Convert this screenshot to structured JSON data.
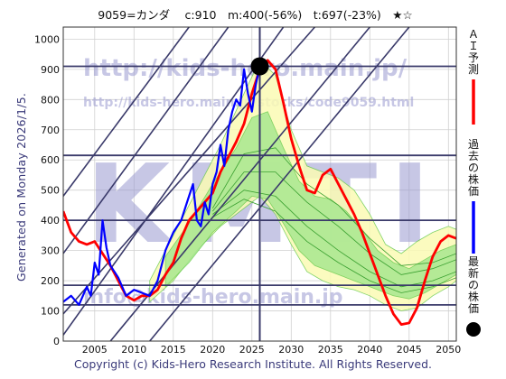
{
  "header": {
    "title": "9059=カンダ　 c:910　m:400(-56%)　t:697(-23%)　★☆"
  },
  "side_label": "Generated on Monday 2026/1/5.",
  "footer": {
    "copyright": "Copyright (c) Kids-Hero Research Institute. All Rights Reserved."
  },
  "watermarks": {
    "main": "KMTI",
    "url1": "http://kids-hero.main.jp/",
    "url2": "http://kids-hero.main.jp/stocks/code9059.html",
    "url3": "info@kids-hero.main.jp"
  },
  "chart_data": {
    "type": "line",
    "xlim": [
      2001,
      2051
    ],
    "ylim": [
      0,
      1040
    ],
    "x_ticks": [
      2005,
      2010,
      2015,
      2020,
      2025,
      2030,
      2035,
      2040,
      2045,
      2050
    ],
    "y_ticks": [
      0,
      100,
      200,
      300,
      400,
      500,
      600,
      700,
      800,
      900,
      1000
    ],
    "grid": true,
    "current_marker": {
      "x": 2026.0,
      "y": 910
    },
    "current_vline_x": 2026.0,
    "horizontal_levels": [
      910,
      615,
      400,
      185,
      120
    ],
    "diagonal_lines": [
      {
        "x1": 2001,
        "y1": 20,
        "x2": 2029,
        "y2": 1040
      },
      {
        "x1": 2001,
        "y1": 90,
        "x2": 2033,
        "y2": 1040
      },
      {
        "x1": 2001,
        "y1": 290,
        "x2": 2022,
        "y2": 1040
      },
      {
        "x1": 2001,
        "y1": 480,
        "x2": 2017,
        "y2": 1040
      },
      {
        "x1": 2007,
        "y1": 0,
        "x2": 2040,
        "y2": 1040
      },
      {
        "x1": 2012,
        "y1": 0,
        "x2": 2045,
        "y2": 1040
      }
    ],
    "legend": [
      {
        "label": "ＡＩ予測",
        "color": "#ff0000"
      },
      {
        "label": "過去の株価",
        "color": "#0000ff"
      },
      {
        "label": "最新の株価",
        "color": "#000000"
      }
    ],
    "bands": [
      {
        "name": "outer-band",
        "x": [
          2012,
          2015,
          2018,
          2021,
          2024,
          2026,
          2028,
          2030,
          2032,
          2034,
          2036,
          2038,
          2040,
          2042,
          2044,
          2046,
          2048,
          2050,
          2051
        ],
        "upper": [
          200,
          350,
          500,
          650,
          820,
          930,
          880,
          700,
          580,
          560,
          540,
          500,
          420,
          320,
          290,
          330,
          360,
          380,
          370
        ],
        "lower": [
          130,
          200,
          300,
          380,
          440,
          480,
          420,
          320,
          230,
          200,
          180,
          170,
          150,
          120,
          100,
          110,
          150,
          180,
          200
        ]
      },
      {
        "name": "inner-band",
        "x": [
          2014,
          2017,
          2020,
          2023,
          2025,
          2027,
          2029,
          2031,
          2033,
          2035,
          2037,
          2039,
          2041,
          2043,
          2045,
          2047,
          2049,
          2051
        ],
        "upper": [
          280,
          390,
          520,
          640,
          740,
          760,
          640,
          530,
          480,
          470,
          430,
          370,
          300,
          260,
          240,
          270,
          300,
          320
        ],
        "lower": [
          180,
          260,
          360,
          430,
          480,
          470,
          390,
          300,
          250,
          230,
          210,
          190,
          170,
          150,
          140,
          160,
          190,
          220
        ]
      }
    ],
    "series": [
      {
        "name": "ＡＩ予測",
        "color": "#ff0000",
        "x": [
          2001,
          2002,
          2003,
          2004,
          2005,
          2006,
          2007,
          2008,
          2009,
          2010,
          2011,
          2012,
          2013,
          2014,
          2015,
          2016,
          2017,
          2018,
          2019,
          2020,
          2021,
          2022,
          2023,
          2024,
          2025,
          2026,
          2027,
          2028,
          2029,
          2030,
          2031,
          2032,
          2033,
          2034,
          2035,
          2036,
          2037,
          2038,
          2039,
          2040,
          2041,
          2042,
          2043,
          2044,
          2045,
          2046,
          2047,
          2048,
          2049,
          2050,
          2051
        ],
        "y": [
          430,
          360,
          330,
          320,
          330,
          290,
          250,
          200,
          150,
          135,
          150,
          150,
          170,
          220,
          260,
          340,
          400,
          430,
          460,
          490,
          560,
          610,
          660,
          720,
          820,
          900,
          930,
          900,
          790,
          670,
          580,
          500,
          490,
          550,
          570,
          520,
          470,
          420,
          360,
          290,
          220,
          150,
          90,
          55,
          60,
          110,
          200,
          280,
          330,
          350,
          340
        ]
      },
      {
        "name": "過去の株価",
        "color": "#0000ff",
        "x": [
          2001,
          2002,
          2003,
          2004,
          2004.5,
          2005,
          2005.5,
          2006,
          2006.5,
          2007,
          2008,
          2009,
          2010,
          2011,
          2012,
          2013,
          2014,
          2015,
          2016,
          2017,
          2017.5,
          2018,
          2018.5,
          2019,
          2019.5,
          2020,
          2020.5,
          2021,
          2021.5,
          2022,
          2022.5,
          2023,
          2023.5,
          2024,
          2024.5,
          2025,
          2025.5,
          2026
        ],
        "y": [
          130,
          150,
          120,
          180,
          150,
          260,
          220,
          400,
          310,
          250,
          210,
          150,
          170,
          160,
          150,
          200,
          300,
          360,
          400,
          480,
          520,
          400,
          380,
          460,
          420,
          520,
          560,
          650,
          580,
          700,
          760,
          800,
          780,
          900,
          820,
          760,
          850,
          910
        ]
      }
    ],
    "projection_lines": [
      {
        "x": [
          2020,
          2024,
          2028,
          2032,
          2036,
          2040,
          2044,
          2048,
          2051
        ],
        "y": [
          430,
          560,
          560,
          460,
          380,
          290,
          220,
          240,
          270
        ]
      },
      {
        "x": [
          2020,
          2024,
          2028,
          2032,
          2036,
          2040,
          2044,
          2048,
          2051
        ],
        "y": [
          420,
          500,
          480,
          380,
          300,
          230,
          180,
          200,
          230
        ]
      },
      {
        "x": [
          2020,
          2024,
          2028,
          2032,
          2036,
          2040,
          2044,
          2048,
          2051
        ],
        "y": [
          440,
          620,
          640,
          520,
          450,
          340,
          250,
          260,
          290
        ]
      },
      {
        "x": [
          2020,
          2024,
          2028,
          2032,
          2036,
          2040,
          2044,
          2048,
          2051
        ],
        "y": [
          410,
          470,
          430,
          330,
          260,
          200,
          160,
          180,
          210
        ]
      }
    ]
  }
}
